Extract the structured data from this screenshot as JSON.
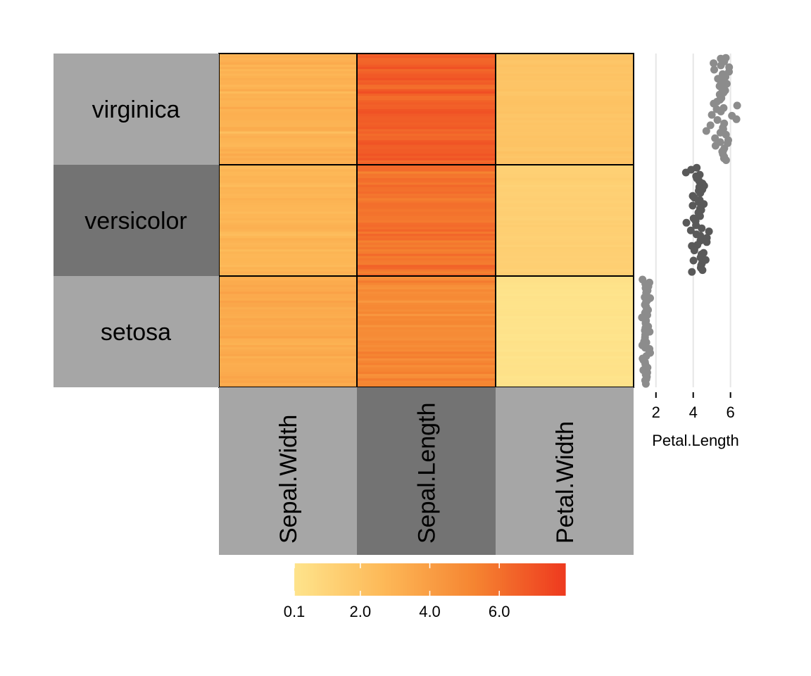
{
  "chart_data": {
    "type": "heatmap",
    "row_groups": [
      "virginica",
      "versicolor",
      "setosa"
    ],
    "columns": [
      "Sepal.Width",
      "Sepal.Length",
      "Petal.Width"
    ],
    "cell_means": {
      "virginica": {
        "Sepal.Width": 3.0,
        "Sepal.Length": 6.6,
        "Petal.Width": 2.0
      },
      "versicolor": {
        "Sepal.Width": 2.8,
        "Sepal.Length": 5.9,
        "Petal.Width": 1.3
      },
      "setosa": {
        "Sepal.Width": 3.4,
        "Sepal.Length": 5.0,
        "Petal.Width": 0.2
      }
    },
    "row_group_colors": [
      "#a6a6a6",
      "#737373",
      "#a6a6a6"
    ],
    "column_group_colors": [
      "#a6a6a6",
      "#737373",
      "#a6a6a6"
    ],
    "colorbar": {
      "min": 0.1,
      "max": 7.9,
      "ticks": [
        0.1,
        2.0,
        4.0,
        6.0
      ],
      "tick_labels": [
        "0.1",
        "2.0",
        "4.0",
        "6.0"
      ],
      "colors": [
        "#fee48c",
        "#fdb857",
        "#f58431",
        "#ee3a1f"
      ]
    },
    "side_plot": {
      "type": "scatter",
      "xlabel": "Petal.Length",
      "xticks": [
        2,
        4,
        6
      ],
      "xtick_labels": [
        "2",
        "4",
        "6"
      ],
      "xlim": [
        0.8,
        7.6
      ],
      "group_means": {
        "virginica": 5.55,
        "versicolor": 4.26,
        "setosa": 1.46
      },
      "group_spread": {
        "virginica": 0.55,
        "versicolor": 0.47,
        "setosa": 0.17
      },
      "point_colors": {
        "virginica": "#8c8c8c",
        "versicolor": "#595959",
        "setosa": "#8c8c8c"
      },
      "points_per_group": 50,
      "grid": true
    }
  }
}
